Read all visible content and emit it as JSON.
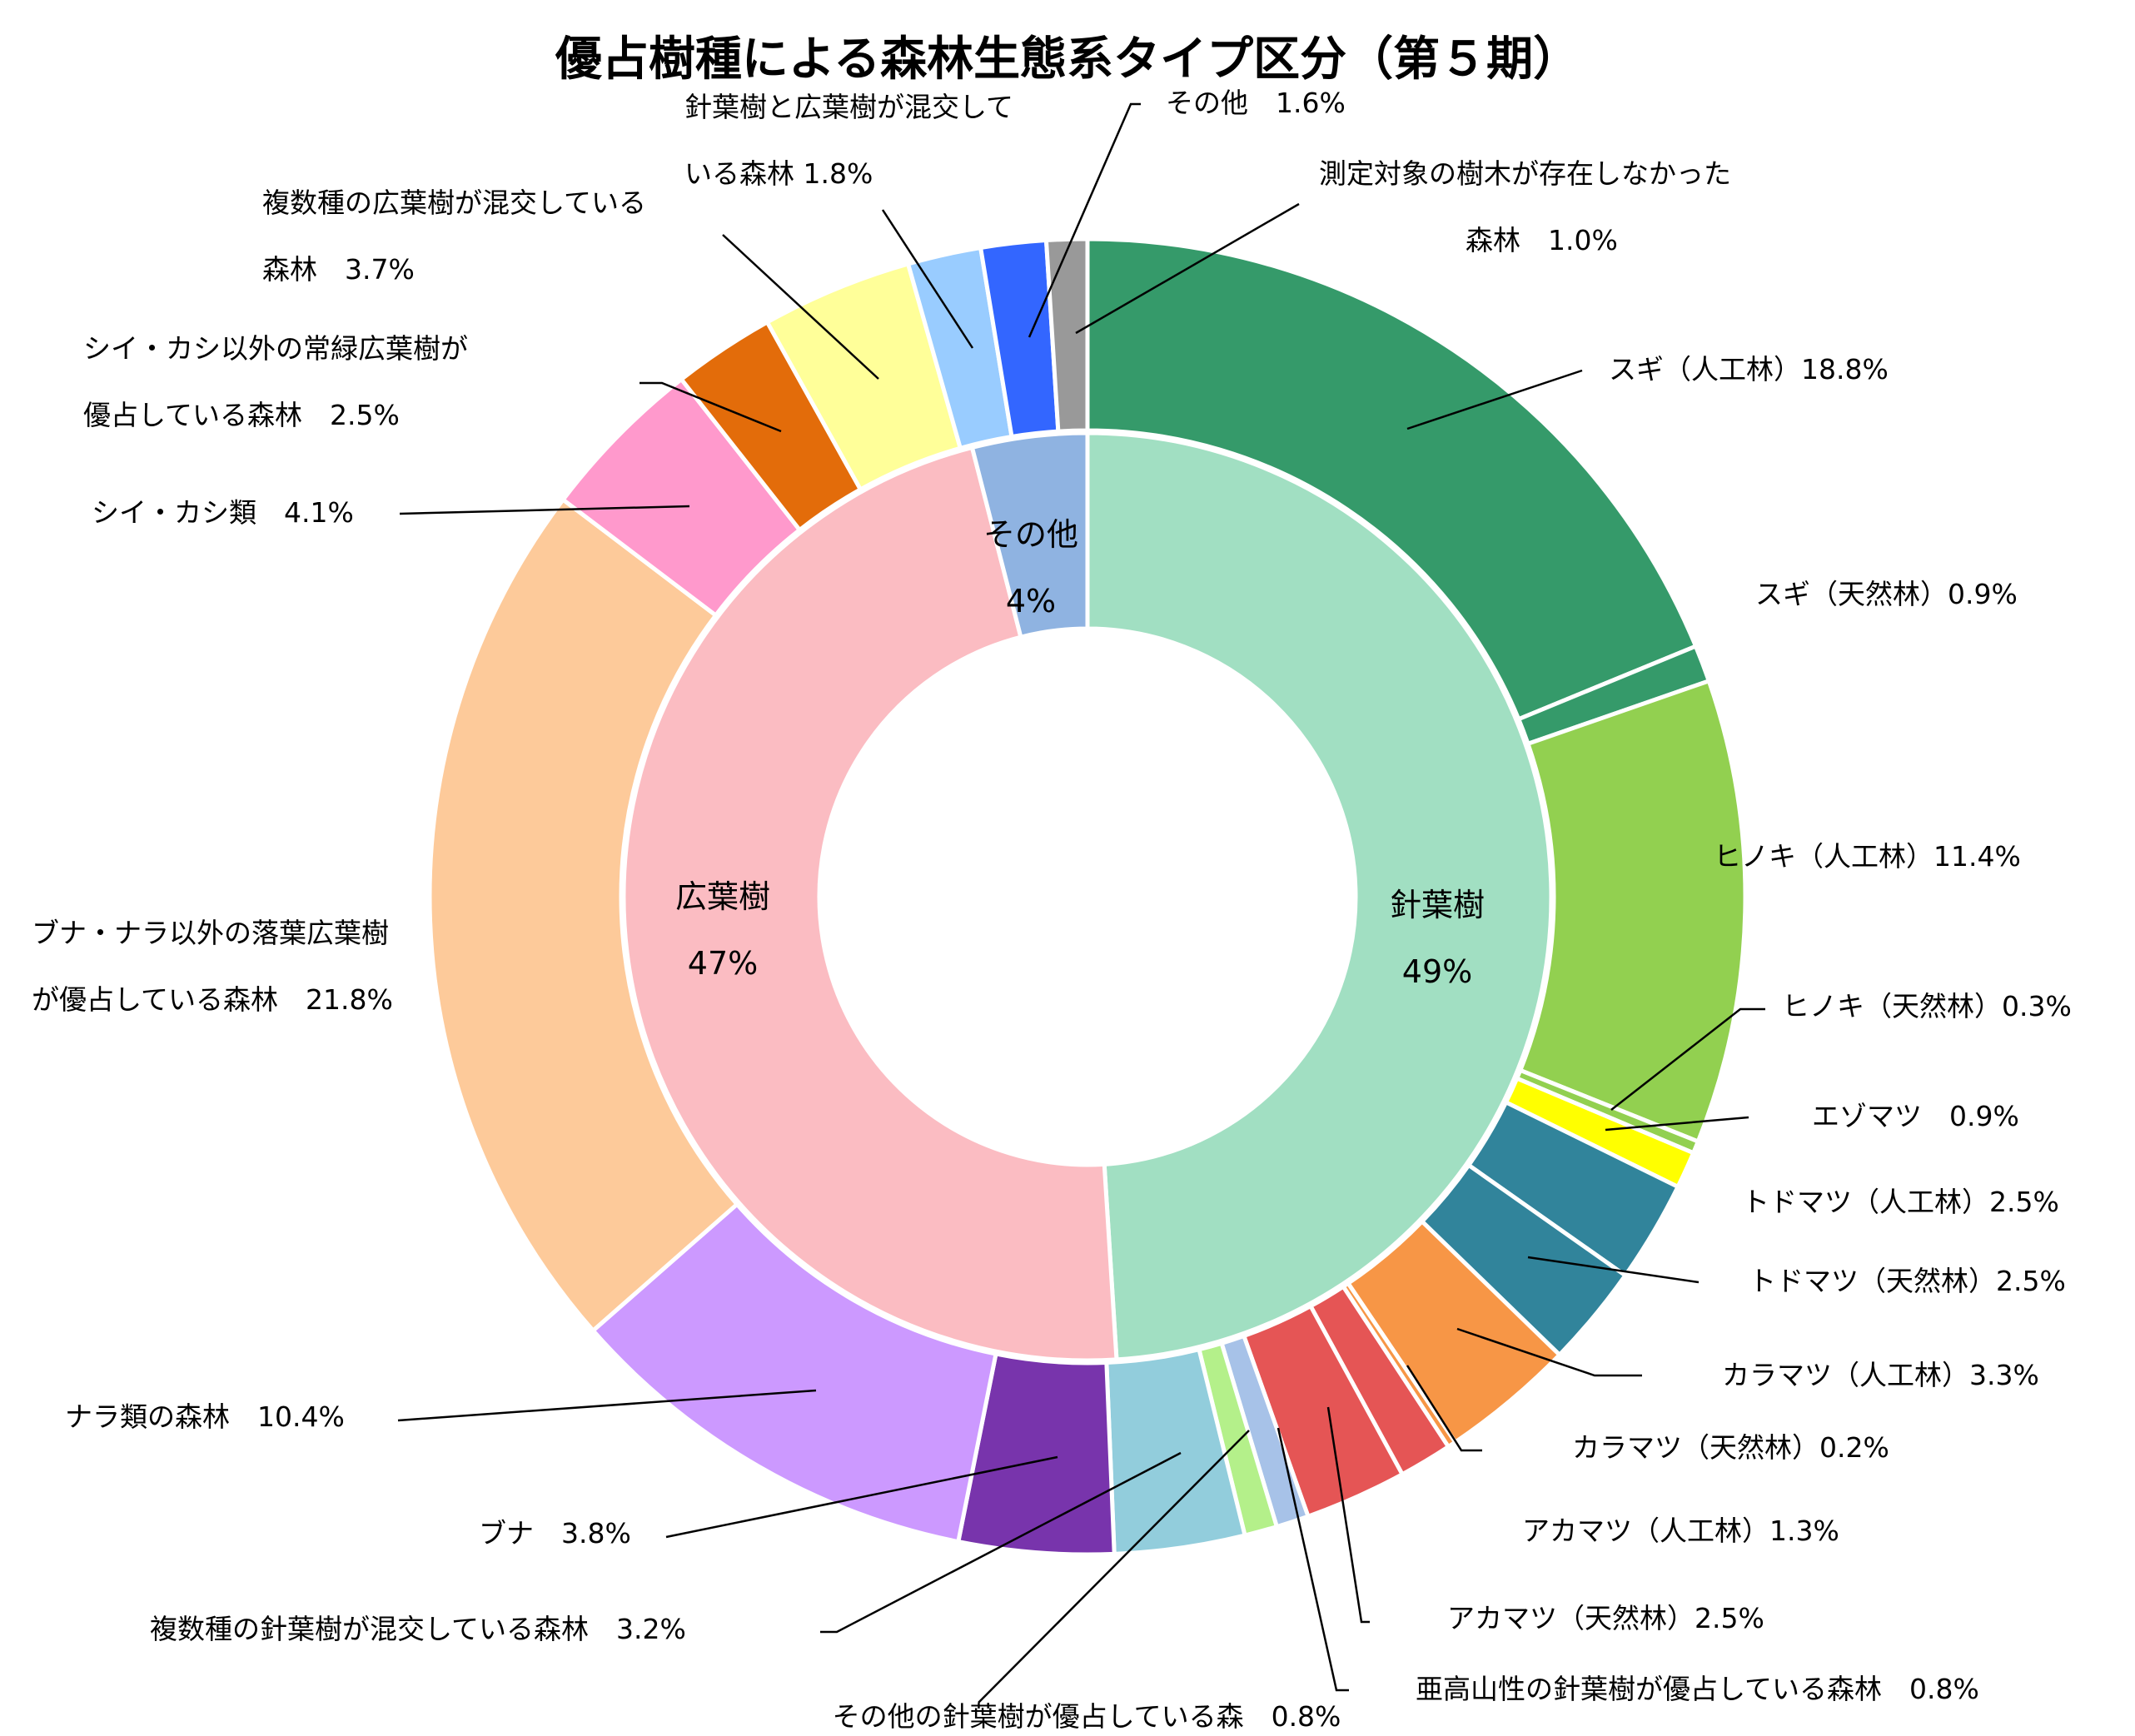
{
  "chart_data": {
    "type": "pie",
    "subtype": "nested-donut",
    "title": "優占樹種による森林生態系タイプ区分（第５期）",
    "inner": [
      {
        "name": "針葉樹",
        "value": 49,
        "label": "49%",
        "color": "#a1dfc2"
      },
      {
        "name": "広葉樹",
        "value": 47,
        "label": "47%",
        "color": "#fbbcc2"
      },
      {
        "name": "その他",
        "value": 4,
        "label": "4%",
        "color": "#8fb3e1"
      }
    ],
    "outer": [
      {
        "name": "スギ（人工林）18.8%",
        "value": 18.8,
        "color": "#359a6a"
      },
      {
        "name": "スギ（天然林）0.9%",
        "value": 0.9,
        "color": "#359a6a"
      },
      {
        "name": "ヒノキ（人工林）11.4%",
        "value": 11.4,
        "color": "#92d050"
      },
      {
        "name": "ヒノキ（天然林）0.3%",
        "value": 0.3,
        "color": "#92d050"
      },
      {
        "name": "エゾマツ　0.9%",
        "value": 0.9,
        "color": "#ffff00"
      },
      {
        "name": "トドマツ（人工林）2.5%",
        "value": 2.5,
        "color": "#31849b"
      },
      {
        "name": "トドマツ（天然林）2.5%",
        "value": 2.5,
        "color": "#31849b"
      },
      {
        "name": "カラマツ（人工林）3.3%",
        "value": 3.3,
        "color": "#f79646"
      },
      {
        "name": "カラマツ（天然林）0.2%",
        "value": 0.2,
        "color": "#f79646"
      },
      {
        "name": "アカマツ（人工林）1.3%",
        "value": 1.3,
        "color": "#e55555"
      },
      {
        "name": "アカマツ（天然林）2.5%",
        "value": 2.5,
        "color": "#e55555"
      },
      {
        "name": "亜高山性の針葉樹が優占している森林　0.8%",
        "value": 0.8,
        "color": "#a7c2e8"
      },
      {
        "name": "その他の針葉樹が優占している森　0.8%",
        "value": 0.8,
        "color": "#b4f08a"
      },
      {
        "name": "複数種の針葉樹が混交している森林　3.2%",
        "value": 3.2,
        "color": "#92cddc"
      },
      {
        "name": "ブナ　3.8%",
        "value": 3.8,
        "color": "#7834ac"
      },
      {
        "name": "ナラ類の森林　10.4%",
        "value": 10.4,
        "color": "#cc99ff"
      },
      {
        "name": "ブナ・ナラ以外の落葉広葉樹が優占している森林　21.8%",
        "value": 21.8,
        "color": "#fdca9a"
      },
      {
        "name": "シイ・カシ類　4.1%",
        "value": 4.1,
        "color": "#ff99cc"
      },
      {
        "name": "シイ・カシ以外の常緑広葉樹が優占している森林　2.5%",
        "value": 2.5,
        "color": "#e36c0a"
      },
      {
        "name": "複数種の広葉樹が混交している森林　3.7%",
        "value": 3.7,
        "color": "#ffff99"
      },
      {
        "name": "針葉樹と広葉樹が混交している森林 1.8%",
        "value": 1.8,
        "color": "#99ccff"
      },
      {
        "name": "その他　1.6%",
        "value": 1.6,
        "color": "#3366ff"
      },
      {
        "name": "測定対象の樹木が存在しなかった森林　1.0%",
        "value": 1.0,
        "color": "#999999"
      }
    ],
    "outer_labels": [
      [
        "スギ（人工林）18.8%"
      ],
      [
        "スギ（天然林）0.9%"
      ],
      [
        "ヒノキ（人工林）11.4%"
      ],
      [
        "ヒノキ（天然林）0.3%"
      ],
      [
        "エゾマツ　0.9%"
      ],
      [
        "トドマツ（人工林）2.5%"
      ],
      [
        "トドマツ（天然林）2.5%"
      ],
      [
        "カラマツ（人工林）3.3%"
      ],
      [
        "カラマツ（天然林）0.2%"
      ],
      [
        "アカマツ（人工林）1.3%"
      ],
      [
        "アカマツ（天然林）2.5%"
      ],
      [
        "亜高山性の針葉樹が優占している森林　0.8%"
      ],
      [
        "その他の針葉樹が優占している森　0.8%"
      ],
      [
        "複数種の針葉樹が混交している森林　3.2%"
      ],
      [
        "ブナ　3.8%"
      ],
      [
        "ナラ類の森林　10.4%"
      ],
      [
        "ブナ・ナラ以外の落葉広葉樹",
        "が優占している森林　21.8%"
      ],
      [
        "シイ・カシ類　4.1%"
      ],
      [
        "シイ・カシ以外の常緑広葉樹が",
        "優占している森林　2.5%"
      ],
      [
        "複数種の広葉樹が混交している",
        "森林　3.7%"
      ],
      [
        "針葉樹と広葉樹が混交して",
        "いる森林 1.8%"
      ],
      [
        "その他　1.6%"
      ],
      [
        "測定対象の樹木が存在しなかった",
        "森林　1.0%"
      ]
    ]
  }
}
